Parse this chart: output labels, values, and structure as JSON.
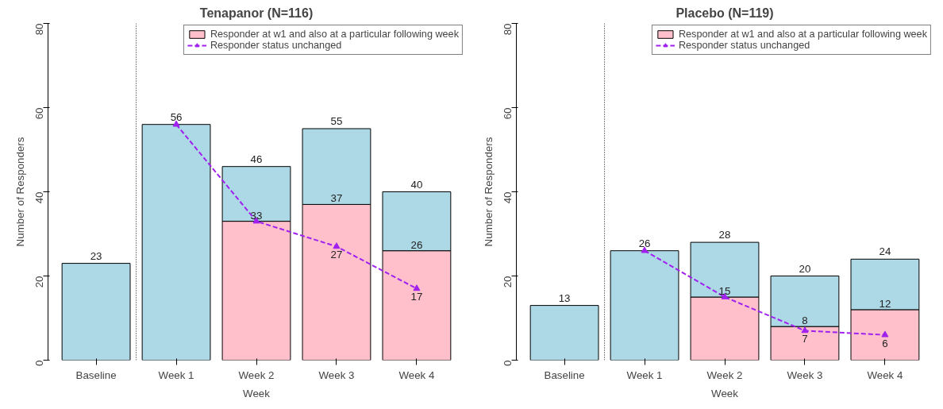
{
  "chart_data": [
    {
      "type": "bar",
      "title": "Tenapanor (N=116)",
      "xlabel": "Week",
      "ylabel": "Number of Responders",
      "categories": [
        "Baseline",
        "Week 1",
        "Week 2",
        "Week 3",
        "Week 4"
      ],
      "stacked": true,
      "ylim": [
        0,
        80
      ],
      "yticks": [
        0,
        20,
        40,
        60,
        80
      ],
      "grid": false,
      "legend": "top right",
      "marker": "triangle",
      "line_style": "dashed",
      "series": [
        {
          "name": "Responder at w1 and also at a particular following week",
          "color": "#ffc0cb",
          "values": [
            null,
            null,
            33,
            37,
            26
          ],
          "value_labels": [
            null,
            null,
            "33",
            "37",
            "26"
          ]
        },
        {
          "color": "#add8e6",
          "values": [
            23,
            56,
            13,
            18,
            14
          ]
        },
        {
          "name": "Responder status unchanged",
          "type": "line",
          "color": "#a020f0",
          "values": [
            null,
            56,
            33,
            27,
            17
          ],
          "value_labels": [
            null,
            null,
            null,
            "27",
            "17"
          ]
        }
      ],
      "totals": [
        "23",
        "56",
        "46",
        "55",
        "40"
      ]
    },
    {
      "type": "bar",
      "title": "Placebo (N=119)",
      "xlabel": "Week",
      "ylabel": "Number of Responders",
      "categories": [
        "Baseline",
        "Week 1",
        "Week 2",
        "Week 3",
        "Week 4"
      ],
      "stacked": true,
      "ylim": [
        0,
        80
      ],
      "yticks": [
        0,
        20,
        40,
        60,
        80
      ],
      "grid": false,
      "legend": "top right",
      "marker": "triangle",
      "line_style": "dashed",
      "series": [
        {
          "name": "Responder at w1 and also at a particular following week",
          "color": "#ffc0cb",
          "values": [
            null,
            null,
            15,
            8,
            12
          ],
          "value_labels": [
            null,
            null,
            "15",
            "8",
            "12"
          ]
        },
        {
          "color": "#add8e6",
          "values": [
            13,
            26,
            13,
            12,
            12
          ]
        },
        {
          "name": "Responder status unchanged",
          "type": "line",
          "color": "#a020f0",
          "values": [
            null,
            26,
            15,
            7,
            6
          ],
          "value_labels": [
            null,
            null,
            null,
            "7",
            "6"
          ]
        }
      ],
      "totals": [
        "13",
        "26",
        "28",
        "20",
        "24"
      ]
    }
  ]
}
